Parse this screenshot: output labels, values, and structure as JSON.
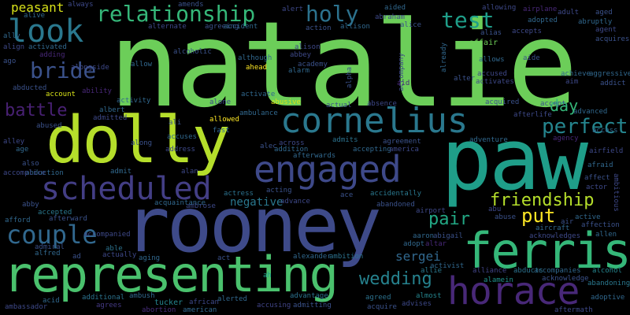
{
  "words": [
    {
      "text": "natalie",
      "color": "#6cce59"
    },
    {
      "text": "paw",
      "color": "#1f9e89"
    },
    {
      "text": "rooney",
      "color": "#3e4a89"
    },
    {
      "text": "dolly",
      "color": "#b5de2b"
    },
    {
      "text": "representing",
      "color": "#4ac16d"
    },
    {
      "text": "ferris",
      "color": "#35b779"
    },
    {
      "text": "horace",
      "color": "#482878"
    },
    {
      "text": "engaged",
      "color": "#3e4989"
    },
    {
      "text": "cornelius",
      "color": "#2a788e"
    },
    {
      "text": "scheduled",
      "color": "#433e85"
    },
    {
      "text": "couple",
      "color": "#31688e"
    },
    {
      "text": "look",
      "color": "#2a788e"
    },
    {
      "text": "relationship",
      "color": "#35b779"
    },
    {
      "text": "bride",
      "color": "#3b528b"
    },
    {
      "text": "holy",
      "color": "#2c728e"
    },
    {
      "text": "test",
      "color": "#1f9e89"
    },
    {
      "text": "perfect",
      "color": "#25858e"
    },
    {
      "text": "friendship",
      "color": "#b5de2b"
    },
    {
      "text": "wedding",
      "color": "#26828e"
    },
    {
      "text": "battle",
      "color": "#482173"
    },
    {
      "text": "pair",
      "color": "#22a884"
    },
    {
      "text": "put",
      "color": "#fde725"
    },
    {
      "text": "day",
      "color": "#35b779"
    },
    {
      "text": "sergei",
      "color": "#31688e"
    },
    {
      "text": "negative",
      "color": "#2a788e"
    },
    {
      "text": "peasant",
      "color": "#d8e219"
    },
    {
      "text": "affair",
      "color": "#6ece58"
    },
    {
      "text": "accused",
      "color": "#3f4788"
    },
    {
      "text": "acquired",
      "color": "#3b528b"
    },
    {
      "text": "accompanies",
      "color": "#31688e"
    },
    {
      "text": "alcohol",
      "color": "#25858e"
    },
    {
      "text": "abandoning",
      "color": "#2a788e"
    },
    {
      "text": "adoptive",
      "color": "#31688e"
    },
    {
      "text": "aftermath",
      "color": "#3e4989"
    },
    {
      "text": "alamein",
      "color": "#21918c"
    },
    {
      "text": "acknowledge",
      "color": "#3b528b"
    },
    {
      "text": "abducts",
      "color": "#2c728e"
    },
    {
      "text": "alliance",
      "color": "#414487"
    },
    {
      "text": "ambassador",
      "color": "#3e4989"
    },
    {
      "text": "acid",
      "color": "#31688e"
    },
    {
      "text": "additional",
      "color": "#2c728e"
    },
    {
      "text": "agrees",
      "color": "#443983"
    },
    {
      "text": "abortion",
      "color": "#472d7b"
    },
    {
      "text": "tucker",
      "color": "#25858e"
    },
    {
      "text": "african",
      "color": "#3e4989"
    },
    {
      "text": "american",
      "color": "#31688e"
    },
    {
      "text": "alerted",
      "color": "#31688e"
    },
    {
      "text": "accusing",
      "color": "#414487"
    },
    {
      "text": "admitting",
      "color": "#3b528b"
    },
    {
      "text": "advantage",
      "color": "#2c728e"
    },
    {
      "text": "agreed",
      "color": "#2c728e"
    },
    {
      "text": "acquire",
      "color": "#3b528b"
    },
    {
      "text": "advises",
      "color": "#3e4989"
    },
    {
      "text": "almost",
      "color": "#25858e"
    },
    {
      "text": "ambush",
      "color": "#31688e"
    },
    {
      "text": "alexander",
      "color": "#31688e"
    },
    {
      "text": "ambition",
      "color": "#2c728e"
    },
    {
      "text": "activist",
      "color": "#31688e"
    },
    {
      "text": "allie",
      "color": "#2a788e"
    },
    {
      "text": "ah",
      "color": "#1f9e89"
    },
    {
      "text": "act",
      "color": "#3b528b"
    },
    {
      "text": "aging",
      "color": "#31688e"
    },
    {
      "text": "actually",
      "color": "#3e4989"
    },
    {
      "text": "admiral",
      "color": "#3b528b"
    },
    {
      "text": "alfred",
      "color": "#31688e"
    },
    {
      "text": "ad",
      "color": "#3b528b"
    },
    {
      "text": "able",
      "color": "#2c728e"
    },
    {
      "text": "accompanied",
      "color": "#3e4989"
    },
    {
      "text": "accepted",
      "color": "#2a788e"
    },
    {
      "text": "afterward",
      "color": "#3b528b"
    },
    {
      "text": "afford",
      "color": "#31688e"
    },
    {
      "text": "abby",
      "color": "#3b528b"
    },
    {
      "text": "ambrose",
      "color": "#3e4989"
    },
    {
      "text": "acquaintance",
      "color": "#31688e"
    },
    {
      "text": "actress",
      "color": "#2c728e"
    },
    {
      "text": "acting",
      "color": "#3b528b"
    },
    {
      "text": "advance",
      "color": "#3e4989"
    },
    {
      "text": "accidentally",
      "color": "#2a788e"
    },
    {
      "text": "abandoned",
      "color": "#3b528b"
    },
    {
      "text": "airport",
      "color": "#3e4989"
    },
    {
      "text": "aaron",
      "color": "#31688e"
    },
    {
      "text": "abigail",
      "color": "#3b528b"
    },
    {
      "text": "adopt",
      "color": "#31688e"
    },
    {
      "text": "altar",
      "color": "#482878"
    },
    {
      "text": "abu",
      "color": "#3e4989"
    },
    {
      "text": "abuse",
      "color": "#3b528b"
    },
    {
      "text": "aircraft",
      "color": "#31688e"
    },
    {
      "text": "air",
      "color": "#3b528b"
    },
    {
      "text": "acknowledges",
      "color": "#3e4989"
    },
    {
      "text": "active",
      "color": "#31688e"
    },
    {
      "text": "affection",
      "color": "#3b528b"
    },
    {
      "text": "allen",
      "color": "#31688e"
    },
    {
      "text": "actor",
      "color": "#3e4989"
    },
    {
      "text": "affect",
      "color": "#3b528b"
    },
    {
      "text": "afraid",
      "color": "#31688e"
    },
    {
      "text": "airfield",
      "color": "#3e4989"
    },
    {
      "text": "agency",
      "color": "#482878"
    },
    {
      "text": "adventure",
      "color": "#31688e"
    },
    {
      "text": "afterlife",
      "color": "#3e4989"
    },
    {
      "text": "accept",
      "color": "#3b528b"
    },
    {
      "text": "advanced",
      "color": "#31688e"
    },
    {
      "text": "absence",
      "color": "#3e4989"
    },
    {
      "text": "actual",
      "color": "#3b528b"
    },
    {
      "text": "abusive",
      "color": "#d8e219"
    },
    {
      "text": "ambulance",
      "color": "#31688e"
    },
    {
      "text": "alec",
      "color": "#3b528b"
    },
    {
      "text": "across",
      "color": "#3e4989"
    },
    {
      "text": "addition",
      "color": "#31688e"
    },
    {
      "text": "admits",
      "color": "#2c728e"
    },
    {
      "text": "agreement",
      "color": "#3b528b"
    },
    {
      "text": "accepting",
      "color": "#31688e"
    },
    {
      "text": "america",
      "color": "#3e4989"
    },
    {
      "text": "afterwards",
      "color": "#31688e"
    },
    {
      "text": "ace",
      "color": "#3b528b"
    },
    {
      "text": "allowed",
      "color": "#fde725"
    },
    {
      "text": "fast",
      "color": "#31688e"
    },
    {
      "text": "alone",
      "color": "#3e4989"
    },
    {
      "text": "ali",
      "color": "#3b528b"
    },
    {
      "text": "accuses",
      "color": "#31688e"
    },
    {
      "text": "address",
      "color": "#3e4989"
    },
    {
      "text": "along",
      "color": "#3b528b"
    },
    {
      "text": "admit",
      "color": "#31688e"
    },
    {
      "text": "alan",
      "color": "#3e4989"
    },
    {
      "text": "albert",
      "color": "#31688e"
    },
    {
      "text": "admitted",
      "color": "#3e4989"
    },
    {
      "text": "abused",
      "color": "#3b528b"
    },
    {
      "text": "activity",
      "color": "#31688e"
    },
    {
      "text": "alley",
      "color": "#3e4989"
    },
    {
      "text": "age",
      "color": "#31688e"
    },
    {
      "text": "also",
      "color": "#3b528b"
    },
    {
      "text": "abduction",
      "color": "#31688e"
    },
    {
      "text": "accomplice",
      "color": "#3e4989"
    },
    {
      "text": "account",
      "color": "#d8e219"
    },
    {
      "text": "abducted",
      "color": "#3b528b"
    },
    {
      "text": "ability",
      "color": "#482878"
    },
    {
      "text": "activate",
      "color": "#31688e"
    },
    {
      "text": "ahead",
      "color": "#fde725"
    },
    {
      "text": "abbey",
      "color": "#3e4989"
    },
    {
      "text": "alarm",
      "color": "#31688e"
    },
    {
      "text": "academy",
      "color": "#3b528b"
    },
    {
      "text": "alison",
      "color": "#3e4989"
    },
    {
      "text": "although",
      "color": "#31688e"
    },
    {
      "text": "alcoholic",
      "color": "#3b528b"
    },
    {
      "text": "allow",
      "color": "#31688e"
    },
    {
      "text": "alternate",
      "color": "#3e4989"
    },
    {
      "text": "agreeing",
      "color": "#3b528b"
    },
    {
      "text": "accident",
      "color": "#31688e"
    },
    {
      "text": "alert",
      "color": "#3e4989"
    },
    {
      "text": "action",
      "color": "#3b528b"
    },
    {
      "text": "allison",
      "color": "#31688e"
    },
    {
      "text": "abraham",
      "color": "#3e4989"
    },
    {
      "text": "alice",
      "color": "#3b528b"
    },
    {
      "text": "aided",
      "color": "#31688e"
    },
    {
      "text": "allowing",
      "color": "#3e4989"
    },
    {
      "text": "alias",
      "color": "#3b528b"
    },
    {
      "text": "allows",
      "color": "#31688e"
    },
    {
      "text": "activates",
      "color": "#3e4989"
    },
    {
      "text": "alter",
      "color": "#3b528b"
    },
    {
      "text": "already",
      "color": "#31688e"
    },
    {
      "text": "accompany",
      "color": "#3e4989"
    },
    {
      "text": "aid",
      "color": "#482878"
    },
    {
      "text": "alpha",
      "color": "#3b528b"
    },
    {
      "text": "airplane",
      "color": "#482878"
    },
    {
      "text": "adopted",
      "color": "#31688e"
    },
    {
      "text": "accepts",
      "color": "#3e4989"
    },
    {
      "text": "aide",
      "color": "#3b528b"
    },
    {
      "text": "achieve",
      "color": "#31688e"
    },
    {
      "text": "aim",
      "color": "#3e4989"
    },
    {
      "text": "addict",
      "color": "#3b528b"
    },
    {
      "text": "aggressive",
      "color": "#31688e"
    },
    {
      "text": "adult",
      "color": "#3e4989"
    },
    {
      "text": "aged",
      "color": "#3b528b"
    },
    {
      "text": "abruptly",
      "color": "#31688e"
    },
    {
      "text": "agent",
      "color": "#3e4989"
    },
    {
      "text": "acquires",
      "color": "#3b528b"
    },
    {
      "text": "access",
      "color": "#31688e"
    },
    {
      "text": "ambitious",
      "color": "#3e4989"
    },
    {
      "text": "alive",
      "color": "#31688e"
    },
    {
      "text": "always",
      "color": "#3e4989"
    },
    {
      "text": "amends",
      "color": "#3b528b"
    },
    {
      "text": "ally",
      "color": "#31688e"
    },
    {
      "text": "align",
      "color": "#3e4989"
    },
    {
      "text": "ago",
      "color": "#3b528b"
    },
    {
      "text": "adding",
      "color": "#482878"
    },
    {
      "text": "activated",
      "color": "#31688e"
    },
    {
      "text": "alongside",
      "color": "#3e4989"
    }
  ]
}
